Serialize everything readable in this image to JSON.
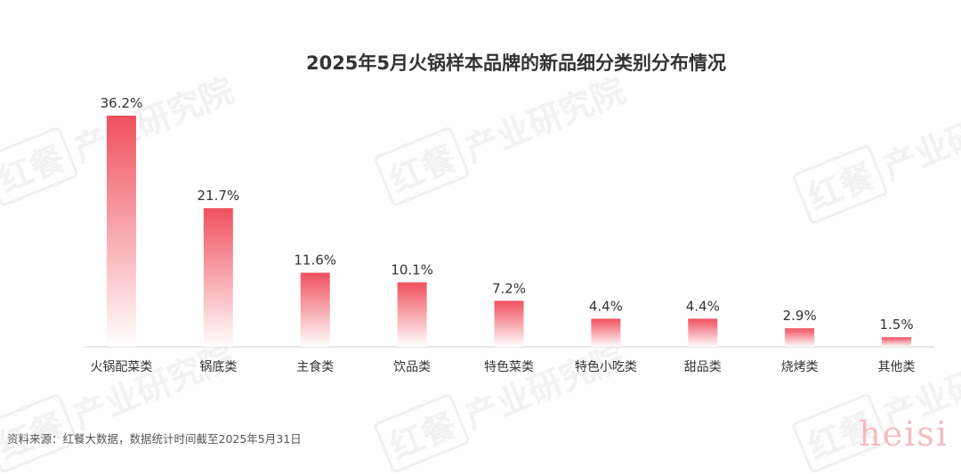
{
  "chart_data": {
    "type": "bar",
    "title": "2025年5月火锅样本品牌的新品细分类别分布情况",
    "categories": [
      "火锅配菜类",
      "锅底类",
      "主食类",
      "饮品类",
      "特色菜类",
      "特色小吃类",
      "甜品类",
      "烧烤类",
      "其他类"
    ],
    "values": [
      36.2,
      21.7,
      11.6,
      10.1,
      7.2,
      4.4,
      4.4,
      2.9,
      1.5
    ],
    "data_labels": [
      "36.2%",
      "21.7%",
      "11.6%",
      "10.1%",
      "7.2%",
      "4.4%",
      "4.4%",
      "2.9%",
      "1.5%"
    ],
    "unit": "%",
    "xlabel": "",
    "ylabel": "",
    "ylim": [
      0,
      36.2
    ],
    "grid": false,
    "legend": "none",
    "bar_color_top": "#f0505e",
    "bar_color_bottom": "#ffffff"
  },
  "source": "资料来源：红餐大数据，数据统计时间截至2025年5月31日",
  "watermark": {
    "box_text": "红餐",
    "text": "产业研究院"
  },
  "corner_mark": "heisi"
}
